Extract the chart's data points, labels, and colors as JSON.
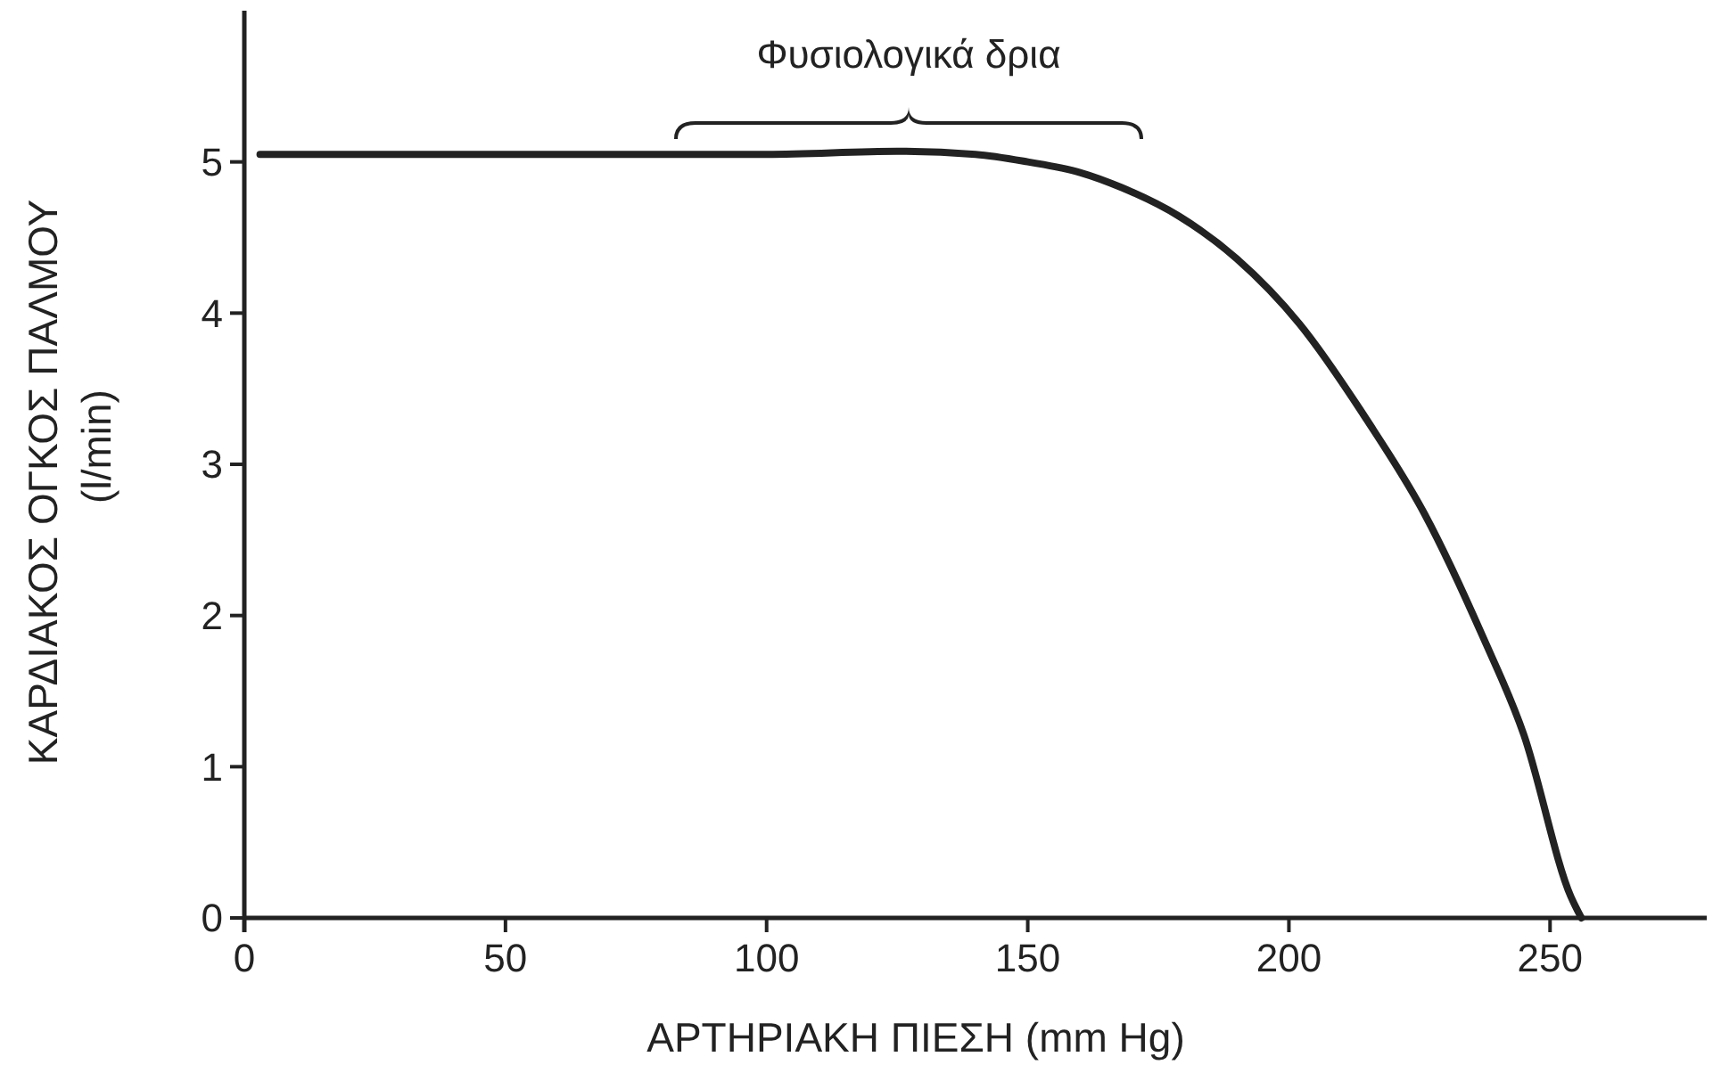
{
  "chart_data": {
    "type": "line",
    "xlabel": "ΑΡΤΗΡΙΑΚΗ ΠΙΕΣΗ (mm Hg)",
    "ylabel": "ΚΑΡΔΙΑΚΟΣ ΟΓΚΟΣ ΠΑΛΜΟΥ\n(l/min)",
    "x": [
      3,
      25,
      50,
      75,
      100,
      125,
      140,
      150,
      160,
      168,
      179,
      190,
      202,
      215,
      226,
      237,
      245,
      254,
      256
    ],
    "series": [
      {
        "color": "#222222",
        "values": [
          5.05,
          5.05,
          5.05,
          5.05,
          5.05,
          5.07,
          5.05,
          5.0,
          4.93,
          4.83,
          4.64,
          4.36,
          3.93,
          3.29,
          2.67,
          1.87,
          1.21,
          0.14,
          0
        ]
      }
    ],
    "xlim": [
      0,
      280
    ],
    "ylim": [
      0,
      6
    ],
    "xticks": [
      0,
      50,
      100,
      150,
      200,
      250
    ],
    "yticks": [
      0,
      1,
      2,
      3,
      4,
      5
    ],
    "annotations": [
      "Φυσιολογικά δρια"
    ],
    "grid": false,
    "marker": "none",
    "line_style": "solid"
  }
}
